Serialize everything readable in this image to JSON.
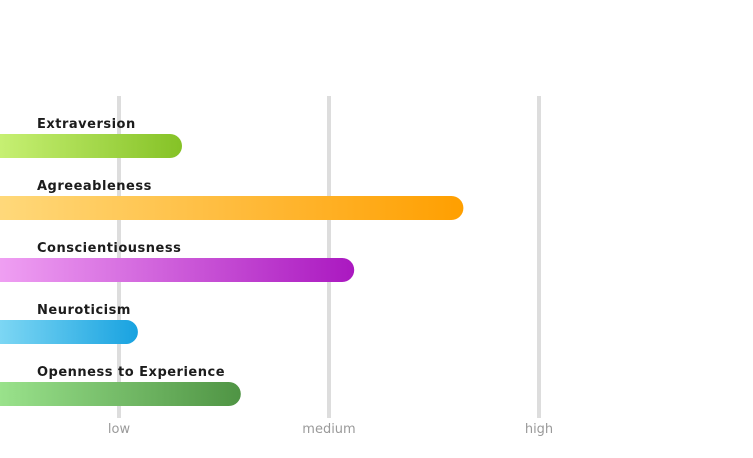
{
  "chart_data": {
    "type": "bar",
    "orientation": "horizontal",
    "categories": [
      "Extraversion",
      "Agreeableness",
      "Conscientiousness",
      "Neuroticism",
      "Openness to Experience"
    ],
    "values": [
      1.3,
      2.64,
      2.12,
      1.09,
      1.58
    ],
    "xlim": [
      0,
      3
    ],
    "ticks": [
      {
        "value": 1,
        "label": "low"
      },
      {
        "value": 2,
        "label": "medium"
      },
      {
        "value": 3,
        "label": "high"
      }
    ],
    "grid": true,
    "colors": [
      {
        "start": "#dcff8c",
        "end": "#85c226"
      },
      {
        "start": "#ffe08a",
        "end": "#ff9f00"
      },
      {
        "start": "#fbb6fb",
        "end": "#aa18c0"
      },
      {
        "start": "#a8edfc",
        "end": "#18a2e0"
      },
      {
        "start": "#acf59d",
        "end": "#4f9444"
      }
    ]
  }
}
